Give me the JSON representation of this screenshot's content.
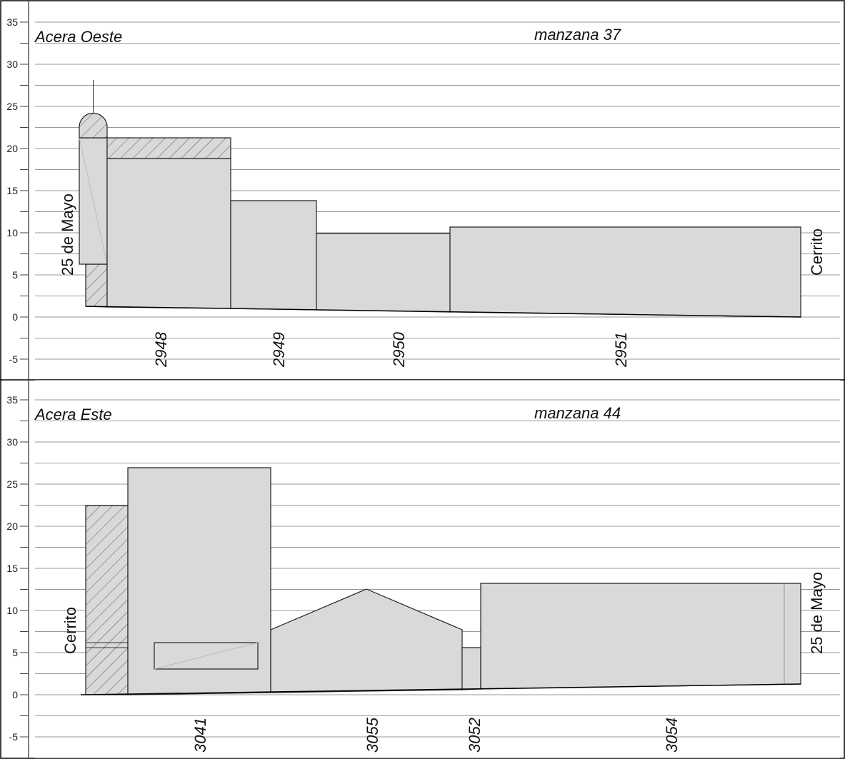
{
  "y_axis_ticks": [
    "35",
    "30",
    "25",
    "20",
    "15",
    "10",
    "5",
    "0",
    "-5"
  ],
  "colors": {
    "building_fill": "#d9d9d9",
    "outline": "#222222",
    "grid": "#9a9a9a"
  },
  "panels": [
    {
      "id": "top",
      "sidewalk": "Acera Oeste",
      "block": "manzana 37",
      "left_street": "25 de Mayo",
      "right_street": "Cerrito",
      "lots": [
        "2948",
        "2949",
        "2950",
        "2951"
      ]
    },
    {
      "id": "bottom",
      "sidewalk": "Acera Este",
      "block": "manzana 44",
      "left_street": "Cerrito",
      "right_street": "25 de Mayo",
      "lots": [
        "3041",
        "3055",
        "3052",
        "3054"
      ]
    }
  ]
}
